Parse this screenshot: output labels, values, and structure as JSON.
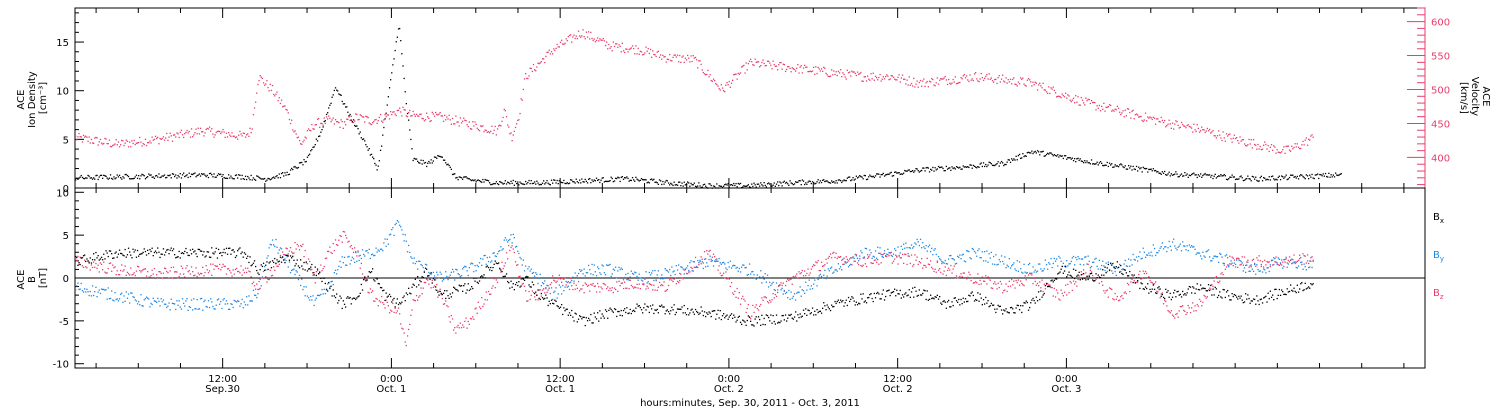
{
  "chart_data": [
    {
      "type": "scatter",
      "panel": "top",
      "ylabel_lines": [
        "ACE",
        "Ion Density",
        "[cm⁻³]"
      ],
      "ylim": [
        0,
        18.5
      ],
      "yticks": [
        0,
        5,
        10,
        15
      ],
      "y2label_lines": [
        "ACE",
        "Velocity",
        "[km/s]"
      ],
      "y2lim": [
        355,
        620
      ],
      "y2ticks": [
        400,
        450,
        500,
        550,
        600
      ],
      "series": [
        {
          "axis": "left",
          "color": "#000000",
          "x": [
            0,
            3,
            6,
            9,
            12,
            13.5,
            15,
            16.5,
            17.5,
            18.5,
            19.5,
            20.5,
            21.5,
            22.5,
            23,
            23.5,
            24,
            25,
            26,
            27,
            28,
            30,
            33,
            36,
            39,
            40,
            42,
            45,
            48,
            51,
            54,
            57,
            60,
            63,
            66,
            68,
            72,
            78,
            84,
            87,
            90
          ],
          "y": [
            1.1,
            1.2,
            1.3,
            1.4,
            1.2,
            1.0,
            1.5,
            3.0,
            6.0,
            10.5,
            7.5,
            5.0,
            2.0,
            12.0,
            17.0,
            9.0,
            3.0,
            2.5,
            3.5,
            1.2,
            0.9,
            0.6,
            0.6,
            0.8,
            1.0,
            0.9,
            0.6,
            0.3,
            0.3,
            0.6,
            0.8,
            1.3,
            1.9,
            2.2,
            2.6,
            3.8,
            2.8,
            1.5,
            1.0,
            1.2,
            1.4
          ]
        },
        {
          "axis": "right",
          "color": "#e83e6c",
          "x": [
            0,
            3,
            6,
            9,
            12,
            12.5,
            13,
            14,
            15,
            16,
            17,
            18,
            19,
            20,
            21,
            22,
            23,
            24,
            26,
            28,
            30,
            30.5,
            31,
            31.5,
            32,
            34,
            36,
            38,
            40,
            42,
            44,
            46,
            48,
            50,
            52,
            54,
            56,
            58,
            60,
            62,
            64,
            66,
            68,
            70,
            72,
            74,
            76,
            78,
            80,
            82,
            84,
            86,
            87,
            88
          ],
          "y": [
            430,
            420,
            428,
            440,
            432,
            440,
            520,
            500,
            470,
            420,
            450,
            455,
            450,
            460,
            455,
            460,
            470,
            462,
            460,
            450,
            440,
            470,
            430,
            460,
            520,
            560,
            585,
            565,
            560,
            548,
            545,
            500,
            540,
            535,
            530,
            525,
            520,
            520,
            510,
            515,
            520,
            515,
            510,
            495,
            480,
            470,
            460,
            450,
            442,
            430,
            420,
            410,
            418,
            430
          ]
        }
      ]
    },
    {
      "type": "scatter",
      "panel": "bottom",
      "ylabel_lines": [
        "ACE",
        "B",
        "[nT]"
      ],
      "ylim": [
        -10.5,
        10.5
      ],
      "yticks": [
        -10,
        -5,
        0,
        5,
        10
      ],
      "legend": [
        {
          "label": "B",
          "sub": "x",
          "color": "#000000"
        },
        {
          "label": "B",
          "sub": "y",
          "color": "#1e88e5"
        },
        {
          "label": "B",
          "sub": "z",
          "color": "#e83e6c"
        }
      ],
      "series": [
        {
          "sub": "x",
          "color": "#000000",
          "x": [
            0,
            3,
            6,
            9,
            12,
            13,
            15,
            17,
            18,
            19,
            20,
            21,
            22,
            23,
            24,
            25,
            26,
            28,
            30,
            31,
            32,
            33,
            34,
            36,
            38,
            40,
            42,
            45,
            48,
            51,
            54,
            57,
            60,
            62,
            64,
            66,
            68,
            70,
            72,
            74,
            76,
            78,
            80,
            82,
            84,
            86,
            88
          ],
          "y": [
            2.0,
            3.0,
            3.0,
            3.0,
            3.0,
            1.0,
            2.5,
            1.0,
            -1.0,
            -3.0,
            -2.0,
            1.0,
            -2.0,
            -3.0,
            -1.0,
            1.0,
            -2.0,
            -1.0,
            2.0,
            -1.0,
            0.0,
            -2.0,
            -3.0,
            -5.0,
            -4.0,
            -3.5,
            -3.5,
            -4.0,
            -5.0,
            -4.5,
            -3.0,
            -2.0,
            -1.5,
            -3.0,
            -2.0,
            -4.0,
            -3.0,
            1.0,
            0.0,
            1.5,
            -1.0,
            -2.0,
            -1.0,
            -2.0,
            -2.5,
            -1.5,
            -0.5
          ]
        },
        {
          "sub": "y",
          "color": "#1e88e5",
          "x": [
            0,
            3,
            6,
            9,
            12,
            13,
            14,
            15,
            17,
            18,
            19,
            21,
            22,
            23,
            24,
            26,
            28,
            30,
            31,
            32,
            33,
            34,
            36,
            38,
            40,
            42,
            45,
            48,
            51,
            54,
            56,
            58,
            60,
            62,
            64,
            66,
            68,
            70,
            72,
            74,
            76,
            78,
            80,
            82,
            84,
            86,
            88
          ],
          "y": [
            -1.0,
            -2.0,
            -3.0,
            -3.0,
            -3.0,
            -1.5,
            4.5,
            2.0,
            -3.0,
            -1.0,
            2.0,
            3.0,
            4.0,
            6.5,
            2.0,
            0.0,
            1.0,
            3.0,
            5.0,
            1.0,
            0.0,
            -2.0,
            1.0,
            1.0,
            0.0,
            0.5,
            2.0,
            1.0,
            -2.0,
            1.0,
            3.0,
            3.0,
            4.0,
            2.0,
            3.0,
            2.0,
            1.0,
            2.0,
            2.0,
            1.0,
            3.0,
            4.0,
            3.0,
            2.0,
            1.0,
            2.0,
            1.5
          ]
        },
        {
          "sub": "z",
          "color": "#e83e6c",
          "x": [
            0,
            3,
            6,
            9,
            12,
            13,
            15,
            16,
            17,
            18,
            19,
            20,
            21,
            22,
            23,
            23.5,
            24,
            25,
            26,
            27,
            28,
            30,
            31,
            32,
            33,
            34,
            36,
            38,
            40,
            42,
            45,
            48,
            51,
            54,
            56,
            58,
            60,
            62,
            64,
            66,
            68,
            70,
            72,
            74,
            76,
            78,
            80,
            82,
            84,
            86,
            88
          ],
          "y": [
            2.0,
            1.0,
            0.5,
            1.0,
            1.0,
            -1.0,
            3.0,
            4.0,
            0.0,
            3.0,
            5.0,
            3.0,
            -2.0,
            -3.0,
            -4.0,
            -8.0,
            -3.0,
            0.0,
            -2.0,
            -6.0,
            -5.0,
            0.0,
            4.0,
            -2.0,
            -2.0,
            0.0,
            -1.0,
            -1.0,
            -0.5,
            -1.0,
            3.0,
            -4.0,
            0.0,
            2.5,
            2.0,
            2.5,
            2.0,
            1.0,
            0.0,
            -1.0,
            0.0,
            -2.0,
            1.0,
            -2.5,
            1.0,
            -4.0,
            -3.0,
            2.0,
            2.0,
            2.0,
            2.5
          ]
        }
      ]
    }
  ],
  "x_axis": {
    "range_hours": [
      0,
      96
    ],
    "ticks": [
      {
        "h": 10.5,
        "time": "12:00",
        "date": "Sep.30"
      },
      {
        "h": 22.5,
        "time": "0:00",
        "date": "Oct. 1"
      },
      {
        "h": 34.5,
        "time": "12:00",
        "date": "Oct. 1"
      },
      {
        "h": 46.5,
        "time": "0:00",
        "date": "Oct. 2"
      },
      {
        "h": 58.5,
        "time": "12:00",
        "date": "Oct. 2"
      },
      {
        "h": 70.5,
        "time": "0:00",
        "date": "Oct. 3"
      }
    ],
    "xlabel": "hours:minutes, Sep. 30, 2011 - Oct. 3, 2011"
  }
}
